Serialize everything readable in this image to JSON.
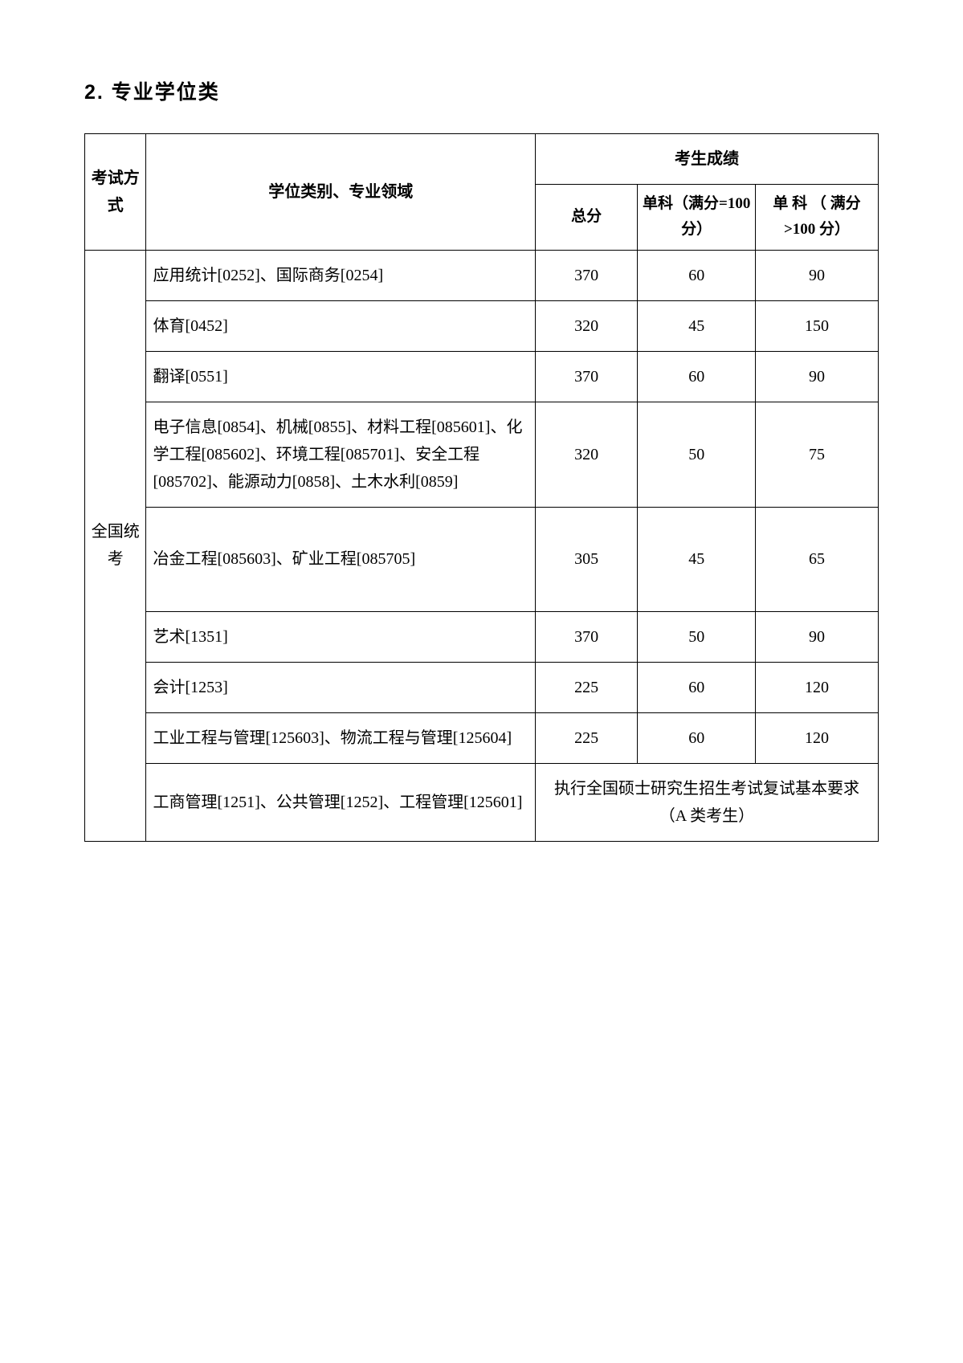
{
  "section_title": "2. 专业学位类",
  "table": {
    "header": {
      "exam_type": "考试方式",
      "major_col": "学位类别、专业领域",
      "scores_group": "考生成绩",
      "total": "总分",
      "sub1": "单科（满分=100 分）",
      "sub2": "单 科 （ 满分>100 分）"
    },
    "exam_type_label": "全国统考",
    "rows": [
      {
        "major": "应用统计[0252]、国际商务[0254]",
        "total": "370",
        "sub1": "60",
        "sub2": "90"
      },
      {
        "major": "体育[0452]",
        "total": "320",
        "sub1": "45",
        "sub2": "150"
      },
      {
        "major": "翻译[0551]",
        "total": "370",
        "sub1": "60",
        "sub2": "90"
      },
      {
        "major": "电子信息[0854]、机械[0855]、材料工程[085601]、化学工程[085602]、环境工程[085701]、安全工程[085702]、能源动力[0858]、土木水利[0859]",
        "total": "320",
        "sub1": "50",
        "sub2": "75"
      },
      {
        "major": "冶金工程[085603]、矿业工程[085705]",
        "total": "305",
        "sub1": "45",
        "sub2": "65"
      },
      {
        "major": "艺术[1351]",
        "total": "370",
        "sub1": "50",
        "sub2": "90"
      },
      {
        "major": "会计[1253]",
        "total": "225",
        "sub1": "60",
        "sub2": "120"
      },
      {
        "major": "工业工程与管理[125603]、物流工程与管理[125604]",
        "total": "225",
        "sub1": "60",
        "sub2": "120"
      }
    ],
    "final_row": {
      "major": "工商管理[1251]、公共管理[1252]、工程管理[125601]",
      "note": "执行全国硕士研究生招生考试复试基本要求（A 类考生）"
    }
  },
  "styles": {
    "background_color": "#ffffff",
    "text_color": "#000000",
    "border_color": "#000000",
    "title_fontsize": 25,
    "body_fontsize": 20,
    "column_widths": {
      "exam_type": 60,
      "major": 380,
      "total": 100,
      "sub1": 115,
      "sub2": 120
    }
  }
}
